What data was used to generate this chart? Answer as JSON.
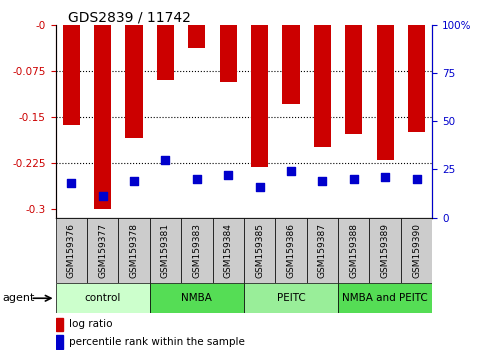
{
  "title": "GDS2839 / 11742",
  "samples": [
    "GSM159376",
    "GSM159377",
    "GSM159378",
    "GSM159381",
    "GSM159383",
    "GSM159384",
    "GSM159385",
    "GSM159386",
    "GSM159387",
    "GSM159388",
    "GSM159389",
    "GSM159390"
  ],
  "log_ratio": [
    -0.163,
    -0.3,
    -0.185,
    -0.09,
    -0.038,
    -0.093,
    -0.232,
    -0.13,
    -0.2,
    -0.178,
    -0.22,
    -0.175
  ],
  "percentile_rank": [
    18,
    11,
    19,
    30,
    20,
    22,
    16,
    24,
    19,
    20,
    21,
    20
  ],
  "ylim_left": [
    -0.315,
    0.0
  ],
  "ylim_right": [
    0,
    100
  ],
  "yticks_left": [
    -0.3,
    -0.225,
    -0.15,
    -0.075,
    0.0
  ],
  "ytick_labels_left": [
    "-0.3",
    "-0.225",
    "-0.15",
    "-0.075",
    "-0"
  ],
  "yticks_right": [
    0,
    25,
    50,
    75,
    100
  ],
  "ytick_labels_right": [
    "0",
    "25",
    "50",
    "75",
    "100%"
  ],
  "groups": [
    {
      "label": "control",
      "start": 0,
      "end": 3,
      "color": "#ccffcc"
    },
    {
      "label": "NMBA",
      "start": 3,
      "end": 6,
      "color": "#55dd55"
    },
    {
      "label": "PEITC",
      "start": 6,
      "end": 9,
      "color": "#99ee99"
    },
    {
      "label": "NMBA and PEITC",
      "start": 9,
      "end": 12,
      "color": "#55dd55"
    }
  ],
  "bar_color": "#cc0000",
  "dot_color": "#0000cc",
  "bar_width": 0.55,
  "dot_size": 30,
  "bg_color": "#ffffff",
  "tick_color_left": "#cc0000",
  "tick_color_right": "#0000cc",
  "legend_items": [
    "log ratio",
    "percentile rank within the sample"
  ],
  "agent_label": "agent",
  "sample_bg_color": "#cccccc"
}
